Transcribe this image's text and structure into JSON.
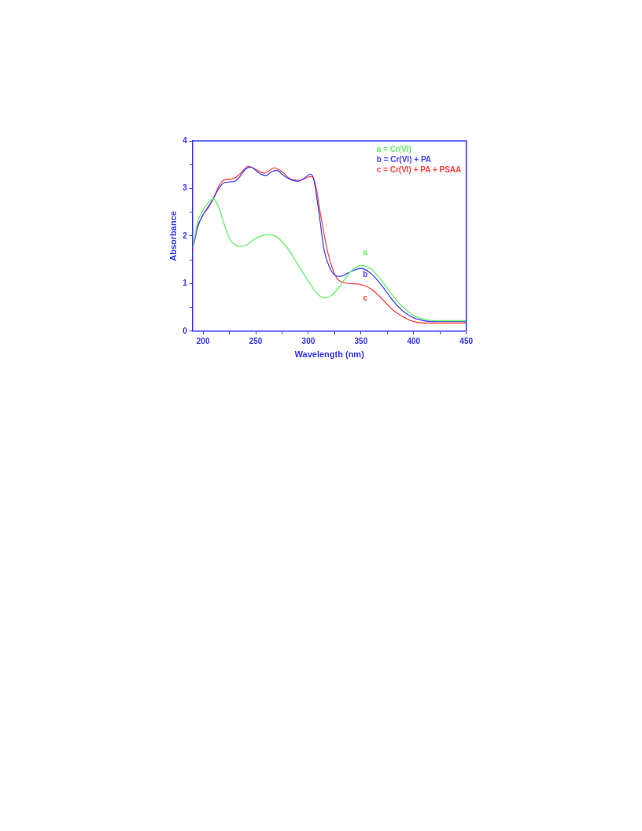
{
  "chart_data": {
    "type": "line",
    "xlabel": "Wavelength (nm)",
    "ylabel": "Absorbance",
    "xlim": [
      190,
      450
    ],
    "xticks": [
      200,
      {
        "value": 225,
        "label": null
      },
      250,
      {
        "value": 275,
        "label": null
      },
      300,
      {
        "value": 325,
        "label": null
      },
      350,
      {
        "value": 375,
        "label": null
      },
      400,
      {
        "value": 425,
        "label": null
      },
      450
    ],
    "ylim": [
      0,
      4
    ],
    "yticks": [
      0,
      {
        "value": 0.5,
        "label": null
      },
      1,
      {
        "value": 1.5,
        "label": null
      },
      2,
      {
        "value": 2.5,
        "label": null
      },
      3,
      {
        "value": 3.5,
        "label": null
      },
      4
    ],
    "grid": false,
    "legend": "top right",
    "marker": "none",
    "line_style": "solid",
    "series": [
      {
        "name": "a = Cr(VI)",
        "color": "#66ee66",
        "x": [
          190,
          195,
          200,
          205,
          210,
          215,
          220,
          225,
          230,
          235,
          240,
          245,
          250,
          255,
          262,
          270,
          280,
          290,
          300,
          308,
          315,
          320,
          330,
          340,
          350,
          360,
          370,
          380,
          390,
          400,
          410,
          420,
          450
        ],
        "values": [
          1.75,
          2.3,
          2.55,
          2.7,
          2.78,
          2.6,
          2.25,
          1.95,
          1.82,
          1.78,
          1.8,
          1.87,
          1.95,
          2.0,
          2.03,
          1.98,
          1.75,
          1.4,
          1.05,
          0.8,
          0.7,
          0.72,
          0.95,
          1.25,
          1.38,
          1.3,
          1.05,
          0.75,
          0.5,
          0.33,
          0.25,
          0.22,
          0.22
        ]
      },
      {
        "name": "b = Cr(VI) + PA",
        "color": "#4444ff",
        "x": [
          190,
          195,
          200,
          205,
          210,
          215,
          220,
          230,
          235,
          240,
          245,
          250,
          255,
          260,
          265,
          270,
          275,
          280,
          290,
          295,
          302,
          305,
          310,
          315,
          320,
          325,
          330,
          340,
          350,
          360,
          370,
          380,
          390,
          400,
          410,
          420,
          450
        ],
        "values": [
          1.75,
          2.2,
          2.45,
          2.6,
          2.8,
          3.0,
          3.12,
          3.15,
          3.25,
          3.4,
          3.45,
          3.38,
          3.3,
          3.27,
          3.35,
          3.38,
          3.3,
          3.22,
          3.15,
          3.2,
          3.3,
          3.2,
          2.5,
          1.7,
          1.35,
          1.18,
          1.15,
          1.25,
          1.32,
          1.2,
          0.95,
          0.65,
          0.42,
          0.28,
          0.22,
          0.2,
          0.2
        ]
      },
      {
        "name": "c = Cr(VI) + PA + PSAA",
        "color": "#ff4444",
        "x": [
          190,
          195,
          200,
          205,
          210,
          215,
          220,
          228,
          235,
          243,
          250,
          258,
          268,
          275,
          283,
          292,
          302,
          306,
          312,
          318,
          325,
          330,
          340,
          350,
          360,
          370,
          380,
          390,
          400,
          410,
          450
        ],
        "values": [
          1.7,
          2.2,
          2.45,
          2.62,
          2.8,
          3.05,
          3.18,
          3.2,
          3.3,
          3.47,
          3.4,
          3.32,
          3.43,
          3.35,
          3.2,
          3.17,
          3.25,
          3.15,
          2.4,
          1.7,
          1.2,
          1.05,
          1.0,
          0.98,
          0.88,
          0.68,
          0.45,
          0.3,
          0.2,
          0.17,
          0.17
        ]
      }
    ],
    "annotations": [
      "a",
      "b",
      "c"
    ]
  }
}
